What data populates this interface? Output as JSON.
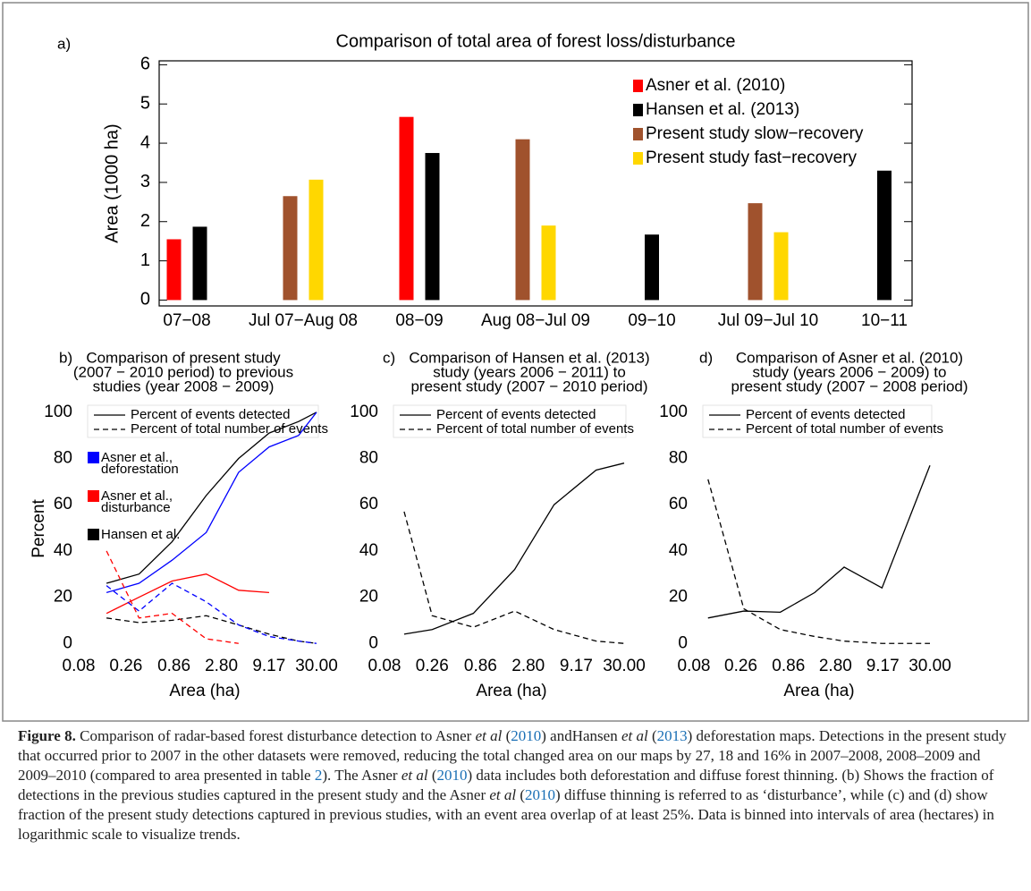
{
  "chart_data": [
    {
      "type": "bar",
      "panel_label": "a)",
      "title": "Comparison of total area of forest loss/disturbance",
      "ylabel": "Area (1000 ha)",
      "categories": [
        "07−08",
        "Jul 07−Aug 08",
        "08−09",
        "Aug 08−Jul 09",
        "09−10",
        "Jul 09−Jul 10",
        "10−11"
      ],
      "series": [
        {
          "name": "Asner et al. (2010)",
          "color": "#ff0000",
          "values": [
            1.55,
            null,
            4.67,
            null,
            null,
            null,
            null
          ]
        },
        {
          "name": "Hansen et al. (2013)",
          "color": "#000000",
          "values": [
            1.87,
            null,
            3.75,
            null,
            1.67,
            null,
            3.3
          ]
        },
        {
          "name": "Present study slow−recovery",
          "color": "#a0522d",
          "values": [
            null,
            2.65,
            null,
            4.1,
            null,
            2.47,
            null
          ]
        },
        {
          "name": "Present study fast−recovery",
          "color": "#ffd700",
          "values": [
            null,
            3.07,
            null,
            1.9,
            null,
            1.73,
            null
          ]
        }
      ],
      "ylim": [
        -0.15,
        6.1
      ],
      "yticks": [
        0,
        1,
        2,
        3,
        4,
        5,
        6
      ],
      "legend": "upper right"
    },
    {
      "type": "line",
      "log_x": true,
      "panel_label": "b)",
      "title": [
        "Comparison of present study",
        "(2007 − 2010 period) to previous",
        "studies (year 2008 − 2009)"
      ],
      "xlabel": "Area (ha)",
      "ylabel": "Percent",
      "x": [
        0.16,
        0.36,
        0.82,
        1.92,
        4.3,
        9.2,
        19.2,
        30
      ],
      "xlim": [
        0.08,
        30
      ],
      "xticks": [
        0.08,
        0.26,
        0.86,
        {
          "value": 2.8,
          "label": "2.80"
        },
        9.17,
        {
          "value": 30,
          "label": "30.00"
        }
      ],
      "ylim": [
        -3,
        110
      ],
      "yticks": [
        0,
        20,
        40,
        60,
        80,
        100
      ],
      "styles": [
        {
          "name": "Percent of events detected",
          "dash": "solid"
        },
        {
          "name": "Percent of total number of events",
          "dash": "dashed"
        }
      ],
      "groups": [
        {
          "name": [
            "Asner et al.,",
            "deforestation"
          ],
          "color": "#0000ff"
        },
        {
          "name": [
            "Asner et al.,",
            "disturbance"
          ],
          "color": "#ff0000"
        },
        {
          "name": [
            "Hansen et al."
          ],
          "color": "#000000"
        }
      ],
      "series": [
        {
          "group": 2,
          "style": 0,
          "values": [
            26,
            30,
            44,
            64,
            80,
            91,
            96,
            100
          ]
        },
        {
          "group": 0,
          "style": 0,
          "values": [
            22,
            26,
            36,
            48,
            74,
            85,
            90,
            100
          ]
        },
        {
          "group": 1,
          "style": 0,
          "values": [
            13,
            20,
            27,
            30,
            23,
            22,
            null,
            null
          ]
        },
        {
          "group": 2,
          "style": 1,
          "values": [
            11,
            9,
            10,
            12,
            8,
            4,
            1,
            0
          ]
        },
        {
          "group": 0,
          "style": 1,
          "values": [
            25,
            14,
            26,
            18,
            8,
            3,
            1,
            0
          ]
        },
        {
          "group": 1,
          "style": 1,
          "values": [
            40,
            11,
            13,
            2,
            0,
            null,
            null,
            null
          ]
        }
      ]
    },
    {
      "type": "line",
      "log_x": true,
      "panel_label": "c)",
      "title": [
        "Comparison of Hansen et al. (2013)",
        "study (years 2006 − 2011) to",
        "present study (2007 − 2010 period)"
      ],
      "xlabel": "Area (ha)",
      "color": "#000000",
      "x": [
        0.13,
        0.26,
        0.72,
        2.0,
        5.3,
        15,
        30
      ],
      "xlim": [
        0.08,
        30
      ],
      "xticks": [
        0.08,
        0.26,
        0.86,
        {
          "value": 2.8,
          "label": "2.80"
        },
        9.17,
        {
          "value": 30,
          "label": "30.00"
        }
      ],
      "ylim": [
        -3,
        110
      ],
      "yticks": [
        0,
        20,
        40,
        60,
        80,
        100
      ],
      "styles": [
        {
          "name": "Percent of events detected",
          "dash": "solid"
        },
        {
          "name": "Percent of total number of events",
          "dash": "dashed"
        }
      ],
      "series": [
        {
          "style": 0,
          "values": [
            4,
            6,
            13,
            32,
            60,
            75,
            78
          ]
        },
        {
          "style": 1,
          "values": [
            57,
            12,
            7,
            14,
            6,
            1,
            0
          ]
        }
      ]
    },
    {
      "type": "line",
      "log_x": true,
      "panel_label": "d)",
      "title": [
        "Comparison of Asner et al. (2010)",
        "study (years 2006 − 2009) to",
        "present study (2007 − 2008 period)"
      ],
      "xlabel": "Area (ha)",
      "color": "#000000",
      "x": [
        0.114,
        0.28,
        0.7,
        1.66,
        3.48,
        9.0,
        30
      ],
      "xlim": [
        0.08,
        30
      ],
      "xticks": [
        0.08,
        0.26,
        0.86,
        {
          "value": 2.8,
          "label": "2.80"
        },
        9.17,
        {
          "value": 30,
          "label": "30.00"
        }
      ],
      "ylim": [
        -3,
        110
      ],
      "yticks": [
        0,
        20,
        40,
        60,
        80,
        100
      ],
      "styles": [
        {
          "name": "Percent of events detected",
          "dash": "solid"
        },
        {
          "name": "Percent of total number of events",
          "dash": "dashed"
        }
      ],
      "series": [
        {
          "style": 0,
          "values": [
            11,
            14,
            13.5,
            22,
            33,
            24,
            77
          ]
        },
        {
          "style": 1,
          "values": [
            71,
            15,
            6,
            3,
            1,
            0,
            0
          ]
        }
      ]
    }
  ],
  "caption": {
    "label": "Figure 8.",
    "runs": [
      {
        "text": " Comparison of radar-based forest disturbance detection to Asner "
      },
      {
        "text": "et al",
        "style": "italic"
      },
      {
        "text": " ("
      },
      {
        "text": "2010",
        "style": "link"
      },
      {
        "text": ") andHansen "
      },
      {
        "text": "et al",
        "style": "italic"
      },
      {
        "text": " ("
      },
      {
        "text": "2013",
        "style": "link"
      },
      {
        "text": ") deforestation maps. Detections in the present study that occurred prior to 2007 in the other datasets were removed, reducing the total changed area on our maps by 27, 18 and 16% in 2007–2008, 2008–2009 and 2009–2010 (compared to area presented in table "
      },
      {
        "text": "2",
        "style": "link"
      },
      {
        "text": "). The Asner "
      },
      {
        "text": "et al",
        "style": "italic"
      },
      {
        "text": " ("
      },
      {
        "text": "2010",
        "style": "link"
      },
      {
        "text": ") data includes both deforestation and diffuse forest thinning. (b) Shows the fraction of detections in the previous studies captured in the present study and the Asner "
      },
      {
        "text": "et al",
        "style": "italic"
      },
      {
        "text": " ("
      },
      {
        "text": "2010",
        "style": "link"
      },
      {
        "text": ") diffuse thinning is referred to as ‘disturbance’, while (c) and (d) show fraction of the present study detections captured in previous studies, with an event area overlap of at least 25%. Data is binned into intervals of area (hectares) in logarithmic scale to visualize trends."
      }
    ]
  }
}
